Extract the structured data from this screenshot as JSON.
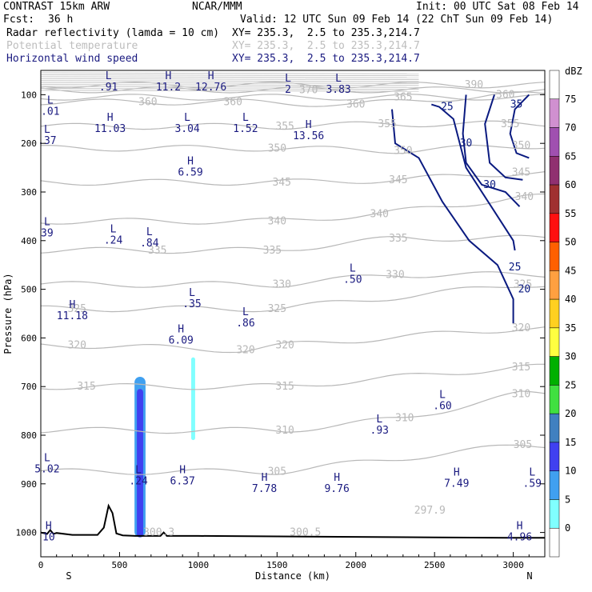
{
  "header": {
    "model": "CONTRAST 15km ARW",
    "org": "NCAR/MMM",
    "init": "Init: 00 UTC Sat 08 Feb 14",
    "fcst_label": "Fcst:",
    "fcst_value": "36 h",
    "valid": "Valid: 12 UTC Sun 09 Feb 14 (22 ChT Sun 09 Feb 14)",
    "fields": [
      {
        "name": "Radar reflectivity (lamda = 10 cm)",
        "xy": "XY= 235.3,  2.5 to 235.3,214.7",
        "color": "#000000"
      },
      {
        "name": "Potential temperature",
        "xy": "XY= 235.3,  2.5 to 235.3,214.7",
        "color": "#bdbdbd"
      },
      {
        "name": "Horizontal wind speed",
        "xy": "XY= 235.3,  2.5 to 235.3,214.7",
        "color": "#1a1a80"
      }
    ]
  },
  "chart_data": {
    "type": "cross-section",
    "xlabel": "Distance (km)",
    "ylabel": "Pressure (hPa)",
    "xlim": [
      0,
      3200
    ],
    "ylim": [
      1050,
      50
    ],
    "x_ticks": [
      "0",
      "500",
      "1000",
      "1500",
      "2000",
      "2500",
      "3000"
    ],
    "x_tick_values": [
      0,
      500,
      1000,
      1500,
      2000,
      2500,
      3000
    ],
    "y_ticks": [
      "100",
      "200",
      "300",
      "400",
      "500",
      "600",
      "700",
      "800",
      "900",
      "1000"
    ],
    "y_tick_values": [
      100,
      200,
      300,
      400,
      500,
      600,
      700,
      800,
      900,
      1000
    ],
    "end_labels": {
      "left": "S",
      "right": "N"
    },
    "theta_contours": [
      {
        "label": "390",
        "x": 2750,
        "p": 80
      },
      {
        "label": "370",
        "x": 1700,
        "p": 90
      },
      {
        "label": "360",
        "x": 680,
        "p": 115
      },
      {
        "label": "360",
        "x": 1220,
        "p": 115
      },
      {
        "label": "360",
        "x": 2000,
        "p": 120
      },
      {
        "label": "365",
        "x": 2300,
        "p": 105
      },
      {
        "label": "360",
        "x": 2950,
        "p": 100
      },
      {
        "label": "355",
        "x": 1550,
        "p": 165
      },
      {
        "label": "355",
        "x": 2200,
        "p": 160
      },
      {
        "label": "355",
        "x": 2980,
        "p": 160
      },
      {
        "label": "350",
        "x": 1500,
        "p": 210
      },
      {
        "label": "350",
        "x": 2300,
        "p": 215
      },
      {
        "label": "350",
        "x": 3050,
        "p": 205
      },
      {
        "label": "345",
        "x": 1530,
        "p": 280
      },
      {
        "label": "345",
        "x": 2270,
        "p": 275
      },
      {
        "label": "345",
        "x": 3050,
        "p": 260
      },
      {
        "label": "340",
        "x": 1500,
        "p": 360
      },
      {
        "label": "340",
        "x": 2150,
        "p": 345
      },
      {
        "label": "340",
        "x": 3070,
        "p": 310
      },
      {
        "label": "335",
        "x": 740,
        "p": 420
      },
      {
        "label": "335",
        "x": 1470,
        "p": 420
      },
      {
        "label": "335",
        "x": 2270,
        "p": 395
      },
      {
        "label": "330",
        "x": 1530,
        "p": 490
      },
      {
        "label": "330",
        "x": 2250,
        "p": 470
      },
      {
        "label": "325",
        "x": 230,
        "p": 540
      },
      {
        "label": "325",
        "x": 1500,
        "p": 540
      },
      {
        "label": "325",
        "x": 3060,
        "p": 490
      },
      {
        "label": "320",
        "x": 230,
        "p": 615
      },
      {
        "label": "320",
        "x": 1300,
        "p": 625
      },
      {
        "label": "320",
        "x": 1550,
        "p": 615
      },
      {
        "label": "320",
        "x": 3050,
        "p": 580
      },
      {
        "label": "315",
        "x": 290,
        "p": 700
      },
      {
        "label": "315",
        "x": 1550,
        "p": 700
      },
      {
        "label": "315",
        "x": 3050,
        "p": 660
      },
      {
        "label": "310",
        "x": 1550,
        "p": 790
      },
      {
        "label": "310",
        "x": 2310,
        "p": 765
      },
      {
        "label": "310",
        "x": 3050,
        "p": 715
      },
      {
        "label": "305",
        "x": 1500,
        "p": 875
      },
      {
        "label": "305",
        "x": 3060,
        "p": 820
      },
      {
        "label": "297.9",
        "x": 2470,
        "p": 955
      },
      {
        "label": "300.5",
        "x": 1680,
        "p": 1000
      },
      {
        "label": "300.3",
        "x": 750,
        "p": 1000
      }
    ],
    "wind_contours": [
      {
        "label": "25",
        "x": 2580,
        "p": 125
      },
      {
        "label": "35",
        "x": 3020,
        "p": 120
      },
      {
        "label": "30",
        "x": 2700,
        "p": 200
      },
      {
        "label": "30",
        "x": 2850,
        "p": 285
      },
      {
        "label": "25",
        "x": 3010,
        "p": 455
      },
      {
        "label": "20",
        "x": 3070,
        "p": 500
      }
    ],
    "extrema": [
      {
        "kind": "L",
        "value": ".91",
        "x": 430,
        "p": 75
      },
      {
        "kind": "H",
        "value": "11.2",
        "x": 810,
        "p": 75
      },
      {
        "kind": "H",
        "value": "12.76",
        "x": 1080,
        "p": 75
      },
      {
        "kind": "L",
        "value": "2",
        "x": 1570,
        "p": 80
      },
      {
        "kind": "L",
        "value": "3.83",
        "x": 1890,
        "p": 80
      },
      {
        "kind": "L",
        "value": ".01",
        "x": 60,
        "p": 125
      },
      {
        "kind": "H",
        "value": "11.03",
        "x": 440,
        "p": 160
      },
      {
        "kind": "L",
        "value": "3.04",
        "x": 930,
        "p": 160
      },
      {
        "kind": "L",
        "value": "1.52",
        "x": 1300,
        "p": 160
      },
      {
        "kind": "H",
        "value": "13.56",
        "x": 1700,
        "p": 175
      },
      {
        "kind": "L",
        "value": ".37",
        "x": 40,
        "p": 185
      },
      {
        "kind": "H",
        "value": "6.59",
        "x": 950,
        "p": 250
      },
      {
        "kind": "L",
        "value": "39",
        "x": 40,
        "p": 375
      },
      {
        "kind": "L",
        "value": ".24",
        "x": 460,
        "p": 390
      },
      {
        "kind": "L",
        "value": ".84",
        "x": 690,
        "p": 395
      },
      {
        "kind": "L",
        "value": ".50",
        "x": 1980,
        "p": 470
      },
      {
        "kind": "L",
        "value": ".35",
        "x": 960,
        "p": 520
      },
      {
        "kind": "H",
        "value": "11.18",
        "x": 200,
        "p": 545
      },
      {
        "kind": "L",
        "value": ".86",
        "x": 1300,
        "p": 560
      },
      {
        "kind": "H",
        "value": "6.09",
        "x": 890,
        "p": 595
      },
      {
        "kind": "L",
        "value": ".60",
        "x": 2550,
        "p": 730
      },
      {
        "kind": "L",
        "value": ".93",
        "x": 2150,
        "p": 780
      },
      {
        "kind": "L",
        "value": "5.02",
        "x": 40,
        "p": 860
      },
      {
        "kind": "L",
        "value": ".24",
        "x": 620,
        "p": 885
      },
      {
        "kind": "H",
        "value": "6.37",
        "x": 900,
        "p": 885
      },
      {
        "kind": "H",
        "value": "7.78",
        "x": 1420,
        "p": 900
      },
      {
        "kind": "H",
        "value": "9.76",
        "x": 1880,
        "p": 900
      },
      {
        "kind": "H",
        "value": "7.49",
        "x": 2640,
        "p": 890
      },
      {
        "kind": "L",
        "value": ".59",
        "x": 3120,
        "p": 890
      },
      {
        "kind": "H",
        "value": "4.96",
        "x": 3040,
        "p": 1000
      },
      {
        "kind": "H",
        "value": "10",
        "x": 50,
        "p": 1000
      }
    ],
    "terrain": [
      [
        0,
        1000
      ],
      [
        40,
        1003
      ],
      [
        60,
        995
      ],
      [
        80,
        1003
      ],
      [
        100,
        1001
      ],
      [
        200,
        1005
      ],
      [
        360,
        1005
      ],
      [
        400,
        990
      ],
      [
        430,
        945
      ],
      [
        455,
        960
      ],
      [
        480,
        1002
      ],
      [
        520,
        1006
      ],
      [
        600,
        1007
      ],
      [
        760,
        1007
      ],
      [
        780,
        1000
      ],
      [
        800,
        1007
      ],
      [
        1000,
        1007
      ],
      [
        1500,
        1008
      ],
      [
        2000,
        1009
      ],
      [
        2500,
        1010
      ],
      [
        3000,
        1011
      ],
      [
        3200,
        1011
      ]
    ],
    "reflectivity_cells": [
      {
        "x0": 595,
        "x1": 665,
        "p_top": 680,
        "p_bottom": 1010,
        "dbz": 10
      },
      {
        "x0": 610,
        "x1": 650,
        "p_top": 705,
        "p_bottom": 1010,
        "dbz": 15
      },
      {
        "x0": 955,
        "x1": 980,
        "p_top": 640,
        "p_bottom": 810,
        "dbz": 5
      }
    ],
    "colorbar": {
      "unit": "dBZ",
      "levels": [
        "75",
        "70",
        "65",
        "60",
        "55",
        "50",
        "45",
        "40",
        "35",
        "30",
        "25",
        "20",
        "15",
        "10",
        "5",
        "0"
      ],
      "colors": [
        "#ffffff",
        "#d090d0",
        "#a050b0",
        "#903070",
        "#a03030",
        "#ff1010",
        "#ff6000",
        "#ffa040",
        "#ffd020",
        "#ffff40",
        "#00b000",
        "#40e040",
        "#4080c0",
        "#4040f0",
        "#40a0f0",
        "#80ffff",
        "#ffffff"
      ]
    }
  }
}
